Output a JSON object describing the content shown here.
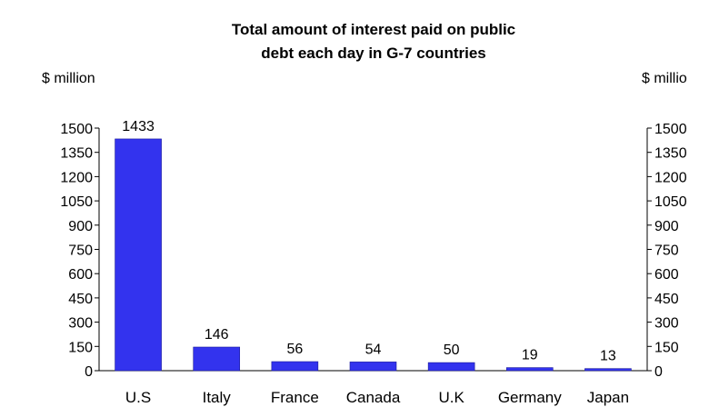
{
  "chart_data": {
    "type": "bar",
    "title": "Total amount of interest paid on public debt each day in G-7 countries",
    "title_lines": [
      "Total amount of interest paid on public",
      "debt each day in G-7 countries"
    ],
    "ylabel_left": "$ million",
    "ylabel_right": "$ millio",
    "categories": [
      "U.S",
      "Italy",
      "France",
      "Canada",
      "U.K",
      "Germany",
      "Japan"
    ],
    "values": [
      1433,
      146,
      56,
      54,
      50,
      19,
      13
    ],
    "data_labels": [
      "1433",
      "146",
      "56",
      "54",
      "50",
      "19",
      "13"
    ],
    "yticks": [
      0,
      150,
      300,
      450,
      600,
      750,
      900,
      1050,
      1200,
      1350,
      1500
    ],
    "ylim": [
      0,
      1500
    ],
    "grid": false,
    "legend": "none",
    "bar_color": "#3333ee"
  }
}
